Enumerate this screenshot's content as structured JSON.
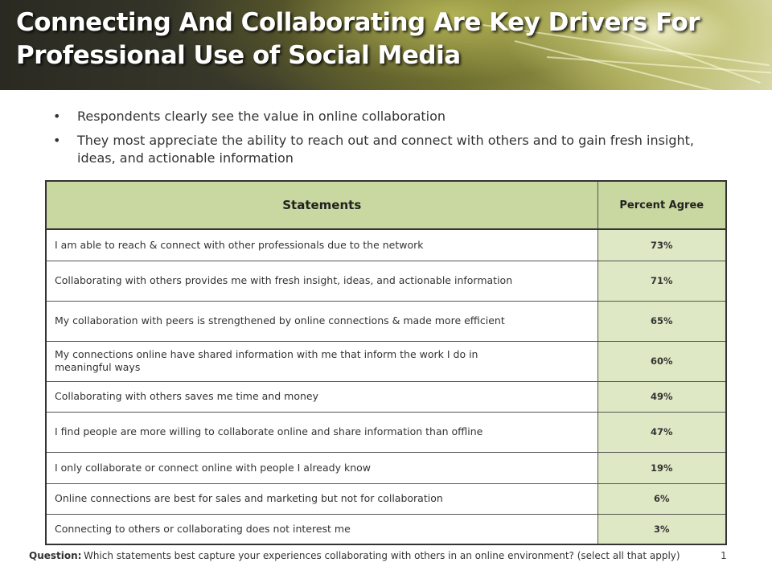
{
  "header": {
    "title_line1": "Connecting And Collaborating Are Key Drivers For",
    "title_line2": "Professional Use of Social Media"
  },
  "bullets": [
    "Respondents clearly see the value in online collaboration",
    "They most appreciate the ability to reach out and connect with others and to gain fresh insight, ideas, and actionable information"
  ],
  "table": {
    "headers": {
      "statements": "Statements",
      "percent": "Percent Agree"
    },
    "rows": [
      {
        "statement": "I am able to reach & connect with other professionals due to the network",
        "percent": "73%"
      },
      {
        "statement": "Collaborating with others provides me with fresh insight, ideas, and actionable information",
        "percent": "71%"
      },
      {
        "statement": "My collaboration with peers is strengthened by online connections & made more efficient",
        "percent": "65%"
      },
      {
        "statement": "My connections online have shared information with me that inform the work I do in meaningful ways",
        "percent": "60%"
      },
      {
        "statement": "Collaborating with others saves me time and money",
        "percent": "49%"
      },
      {
        "statement": "I find people are more willing to collaborate online and share information than offline",
        "percent": "47%"
      },
      {
        "statement": "I only collaborate or connect online with people I already know",
        "percent": "19%"
      },
      {
        "statement": "Online connections are best for sales and marketing but not for collaboration",
        "percent": "6%"
      },
      {
        "statement": "Connecting to others or collaborating does not interest me",
        "percent": "3%"
      }
    ]
  },
  "footer": {
    "question_label": "Question:",
    "question_text": "Which statements best capture your experiences collaborating with others in an online environment? (select all that apply)",
    "page_number": "1"
  },
  "colors": {
    "header_cell": "#c8d8a0",
    "value_cell": "#dfe8c4"
  }
}
